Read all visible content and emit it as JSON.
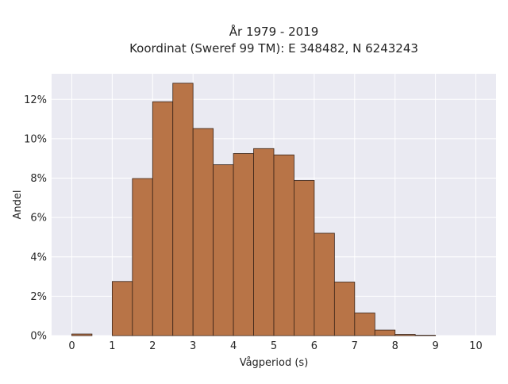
{
  "chart_data": {
    "type": "bar",
    "title_line1": "År 1979 - 2019",
    "title_line2": "Koordinat (Sweref 99 TM): E 348482, N 6243243",
    "xlabel": "Vågperiod (s)",
    "ylabel": "Andel",
    "xlim": [
      -0.5,
      10.5
    ],
    "ylim": [
      0,
      13.3
    ],
    "x_ticks": [
      0,
      1,
      2,
      3,
      4,
      5,
      6,
      7,
      8,
      9,
      10
    ],
    "y_ticks": [
      0,
      2,
      4,
      6,
      8,
      10,
      12
    ],
    "y_tick_labels": [
      "0%",
      "2%",
      "4%",
      "6%",
      "8%",
      "10%",
      "12%"
    ],
    "bin_width": 0.5,
    "bins": [
      {
        "start": 0.0,
        "value": 0.08
      },
      {
        "start": 0.5,
        "value": 0.0
      },
      {
        "start": 1.0,
        "value": 2.75
      },
      {
        "start": 1.5,
        "value": 7.98
      },
      {
        "start": 2.0,
        "value": 11.88
      },
      {
        "start": 2.5,
        "value": 12.82
      },
      {
        "start": 3.0,
        "value": 10.52
      },
      {
        "start": 3.5,
        "value": 8.68
      },
      {
        "start": 4.0,
        "value": 9.25
      },
      {
        "start": 4.5,
        "value": 9.5
      },
      {
        "start": 5.0,
        "value": 9.18
      },
      {
        "start": 5.5,
        "value": 7.88
      },
      {
        "start": 6.0,
        "value": 5.2
      },
      {
        "start": 6.5,
        "value": 2.72
      },
      {
        "start": 7.0,
        "value": 1.15
      },
      {
        "start": 7.5,
        "value": 0.28
      },
      {
        "start": 8.0,
        "value": 0.06
      },
      {
        "start": 8.5,
        "value": 0.02
      }
    ],
    "grid": true,
    "colors": {
      "bar_fill": "#b87447",
      "bar_edge": "#3a2418",
      "plot_bg": "#eaeaf2",
      "grid": "#ffffff"
    }
  }
}
